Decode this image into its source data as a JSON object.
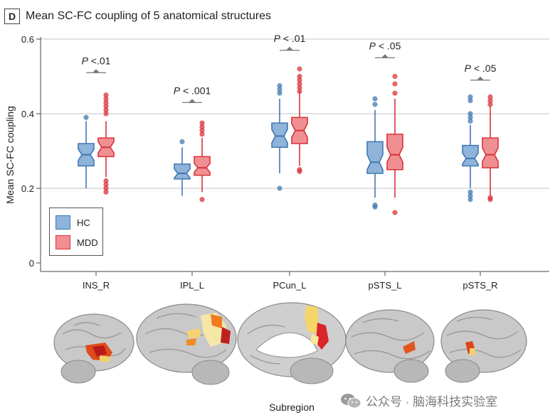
{
  "panel": {
    "label": "D",
    "title": "Mean SC-FC coupling of 5 anatomical structures"
  },
  "colors": {
    "hc_fill": "#8fb3d9",
    "hc_line": "#3f78b2",
    "mdd_fill": "#f08f92",
    "mdd_line": "#d9323a",
    "grid": "#cfcfcf",
    "axis": "#444444",
    "sig": "#777777",
    "text": "#222222"
  },
  "chart_data": {
    "type": "boxplot",
    "ylabel": "Mean SC-FC coupling",
    "xlabel": "Subregion",
    "ylim": [
      0,
      0.6
    ],
    "yticks": [
      "0",
      "0.2",
      "0.4",
      "0.6"
    ],
    "categories": [
      "INS_R",
      "IPL_L",
      "PCun_L",
      "pSTS_L",
      "pSTS_R"
    ],
    "series": [
      {
        "name": "HC",
        "boxes": [
          {
            "whisker_low": 0.2,
            "q1": 0.26,
            "median": 0.29,
            "q3": 0.32,
            "whisker_high": 0.38,
            "notch": 0.015,
            "outliers": [
              0.39
            ]
          },
          {
            "whisker_low": 0.18,
            "q1": 0.225,
            "median": 0.24,
            "q3": 0.265,
            "whisker_high": 0.31,
            "notch": 0.012,
            "outliers": [
              0.325
            ]
          },
          {
            "whisker_low": 0.24,
            "q1": 0.31,
            "median": 0.34,
            "q3": 0.375,
            "whisker_high": 0.44,
            "notch": 0.018,
            "outliers": [
              0.2,
              0.455,
              0.465,
              0.475
            ]
          },
          {
            "whisker_low": 0.175,
            "q1": 0.24,
            "median": 0.27,
            "q3": 0.325,
            "whisker_high": 0.41,
            "notch": 0.02,
            "outliers": [
              0.15,
              0.155,
              0.425,
              0.44
            ]
          },
          {
            "whisker_low": 0.2,
            "q1": 0.26,
            "median": 0.28,
            "q3": 0.315,
            "whisker_high": 0.37,
            "notch": 0.015,
            "outliers": [
              0.17,
              0.18,
              0.19,
              0.38,
              0.39,
              0.4,
              0.435,
              0.445
            ]
          }
        ]
      },
      {
        "name": "MDD",
        "boxes": [
          {
            "whisker_low": 0.23,
            "q1": 0.285,
            "median": 0.31,
            "q3": 0.335,
            "whisker_high": 0.38,
            "notch": 0.015,
            "outliers": [
              0.19,
              0.2,
              0.21,
              0.22,
              0.4,
              0.41,
              0.42,
              0.43,
              0.44,
              0.45
            ]
          },
          {
            "whisker_low": 0.19,
            "q1": 0.235,
            "median": 0.255,
            "q3": 0.285,
            "whisker_high": 0.335,
            "notch": 0.012,
            "outliers": [
              0.17,
              0.345,
              0.355,
              0.365,
              0.375
            ]
          },
          {
            "whisker_low": 0.26,
            "q1": 0.32,
            "median": 0.355,
            "q3": 0.39,
            "whisker_high": 0.46,
            "notch": 0.018,
            "outliers": [
              0.245,
              0.25,
              0.46,
              0.47,
              0.48,
              0.49,
              0.5,
              0.52
            ]
          },
          {
            "whisker_low": 0.175,
            "q1": 0.25,
            "median": 0.29,
            "q3": 0.345,
            "whisker_high": 0.44,
            "notch": 0.02,
            "outliers": [
              0.135,
              0.455,
              0.48,
              0.5
            ]
          },
          {
            "whisker_low": 0.18,
            "q1": 0.255,
            "median": 0.29,
            "q3": 0.335,
            "whisker_high": 0.42,
            "notch": 0.018,
            "outliers": [
              0.17,
              0.175,
              0.425,
              0.435,
              0.445
            ]
          }
        ]
      }
    ],
    "significance": [
      {
        "category": "INS_R",
        "label": "P <.01",
        "level": 0.51
      },
      {
        "category": "IPL_L",
        "label": "P < .001",
        "level": 0.43
      },
      {
        "category": "PCun_L",
        "label": "P < .01",
        "level": 0.57
      },
      {
        "category": "pSTS_L",
        "label": "P < .05",
        "level": 0.55
      },
      {
        "category": "pSTS_R",
        "label": "P < .05",
        "level": 0.49
      }
    ],
    "legend": {
      "position": "bottom-left",
      "items": [
        "HC",
        "MDD"
      ]
    }
  },
  "watermark": {
    "text": "公众号 · 脑海科技实验室",
    "icon": "wechat-icon"
  }
}
